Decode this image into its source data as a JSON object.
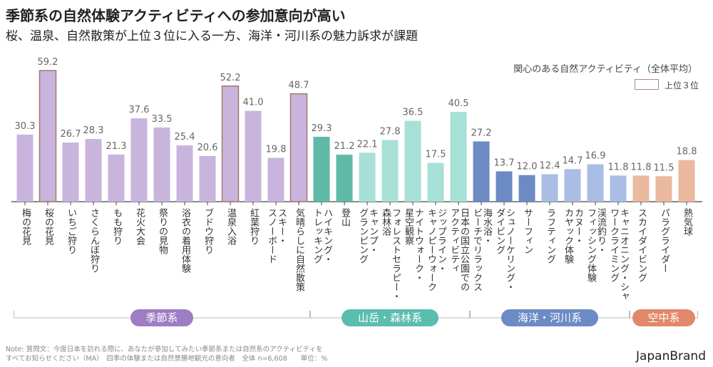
{
  "title": "季節系の自然体験アクティビティへの参加意向が高い",
  "subtitle": "桜、温泉、自然散策が上位３位に入る一方、海洋・河川系の魅力訴求が課題",
  "legend": {
    "title": "関心のある自然アクティビティ（全体平均）",
    "top3_label": "上位３位"
  },
  "note": "Note: 質問文：今度日本を訪れる際に、あなたが参加してみたい季節系または自然系のアクティビティを\nすべてお知らせください（MA）　四季の体験または自然景勝地観光の意向者　全体 n=6,608　　単位：%",
  "brand": "JapanBrand",
  "chart_data": {
    "type": "bar",
    "ylim": [
      0,
      60
    ],
    "grid": false,
    "legend_position": "top-right",
    "categories": [
      "梅の花見",
      "桜の花見",
      "いちご狩り",
      "さくらんぼ狩り",
      "もも狩り",
      "花火大会",
      "祭りの見物",
      "浴衣の着用体験",
      "ブドウ狩り",
      "温泉入浴",
      "紅葉狩り",
      "スキー・\nスノーボード",
      "気晴らしに自然散策",
      "ハイキング・\nトレッキング",
      "登山",
      "キャンプ・\nグランピング",
      "フォレストセラピー・\n森林浴",
      "ナイトウォーク・\n星空観察",
      "ジップライン・\nキャノピーウォーク",
      "日本の国立公園での\nアクティビティ",
      "海水浴・\nビーチでリラックス",
      "シュノーケリング・\nダイビング",
      "サーフィン",
      "ラフティング",
      "カヌー・\nカヤック体験",
      "渓流釣り・\nフィッシング体験",
      "キャニオニング・シャ\nワークライミング",
      "スカイダイビング",
      "パラグライダー",
      "熱気球"
    ],
    "values": [
      30.3,
      59.2,
      26.7,
      28.3,
      21.3,
      37.6,
      33.5,
      25.4,
      20.6,
      52.2,
      41.0,
      19.8,
      48.7,
      29.3,
      21.2,
      22.1,
      27.8,
      36.5,
      17.5,
      40.5,
      27.2,
      13.7,
      12.0,
      12.4,
      14.7,
      16.9,
      11.8,
      11.8,
      11.5,
      18.8
    ],
    "top3": [
      1,
      9,
      12
    ],
    "colors": [
      "#c9b4de",
      "#c9b4de",
      "#c9b4de",
      "#c9b4de",
      "#c9b4de",
      "#c9b4de",
      "#c9b4de",
      "#c9b4de",
      "#c9b4de",
      "#c9b4de",
      "#c9b4de",
      "#c9b4de",
      "#c9b4de",
      "#5fb9a7",
      "#5fb9a7",
      "#a6e0d7",
      "#a6e0d7",
      "#a6e0d7",
      "#a6e0d7",
      "#a6e0d7",
      "#6c8ac4",
      "#6c8ac4",
      "#6c8ac4",
      "#aabde4",
      "#aabde4",
      "#aabde4",
      "#aabde4",
      "#eab9a0",
      "#eab9a0",
      "#eab9a0"
    ],
    "top3_border_color": "#a07a6a",
    "groups": [
      {
        "name": "季節系",
        "start": 0,
        "end": 12,
        "color": "#9d7dc3"
      },
      {
        "name": "山岳・森林系",
        "start": 13,
        "end": 19,
        "color": "#5bbdad"
      },
      {
        "name": "海洋・河川系",
        "start": 20,
        "end": 26,
        "color": "#6c8ac4"
      },
      {
        "name": "空中系",
        "start": 27,
        "end": 29,
        "color": "#e2886a"
      }
    ]
  }
}
